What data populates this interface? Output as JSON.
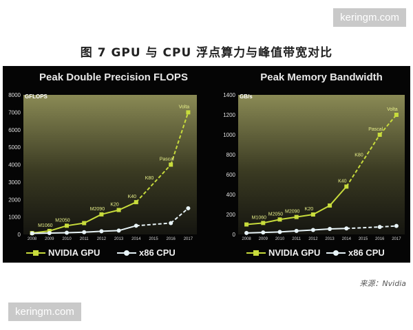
{
  "watermarks": {
    "top": "keringm.com",
    "bottom": "keringm.com"
  },
  "figure_title": "图 7 GPU 与 CPU 浮点算力与峰值带宽对比",
  "source": "来源：Nvidia",
  "colors": {
    "gpu": "#c8dc3c",
    "cpu": "#e8f4f8",
    "background": "#050505",
    "plot_gradient_top": "#8a8a55"
  },
  "chart_data": [
    {
      "type": "line",
      "title": "Peak Double Precision FLOPS",
      "ylabel": "GFLOPS",
      "xlabel": "",
      "x": [
        "2008",
        "2009",
        "2010",
        "2011",
        "2012",
        "2013",
        "2014",
        "2015",
        "2016",
        "2017"
      ],
      "ylim": [
        0,
        8000
      ],
      "yticks": [
        0,
        1000,
        2000,
        3000,
        4000,
        5000,
        6000,
        7000,
        8000
      ],
      "series": [
        {
          "name": "NVIDIA GPU",
          "values": [
            80,
            200,
            500,
            650,
            1150,
            1400,
            1850,
            null,
            4000,
            7000
          ],
          "labels": [
            "",
            "M1060",
            "M2050",
            "",
            "M2090",
            "K20",
            "K40",
            "K80",
            "Pascal",
            "Volta"
          ]
        },
        {
          "name": "x86 CPU",
          "values": [
            60,
            80,
            100,
            130,
            180,
            220,
            500,
            null,
            650,
            1500
          ]
        }
      ],
      "legend": "bottom"
    },
    {
      "type": "line",
      "title": "Peak Memory Bandwidth",
      "ylabel": "GB/s",
      "xlabel": "",
      "x": [
        "2008",
        "2009",
        "2010",
        "2011",
        "2012",
        "2013",
        "2014",
        "2015",
        "2016",
        "2017"
      ],
      "ylim": [
        0,
        1400
      ],
      "yticks": [
        0,
        200,
        400,
        600,
        800,
        1000,
        1200,
        1400
      ],
      "series": [
        {
          "name": "NVIDIA GPU",
          "values": [
            100,
            115,
            150,
            175,
            200,
            290,
            480,
            null,
            1000,
            1200
          ],
          "labels": [
            "",
            "M1060",
            "M2050",
            "M2090",
            "K20",
            "",
            "K40",
            "K80",
            "Pascal",
            "Volta"
          ]
        },
        {
          "name": "x86 CPU",
          "values": [
            15,
            20,
            25,
            35,
            45,
            55,
            60,
            null,
            75,
            85
          ]
        }
      ],
      "legend": "bottom"
    }
  ]
}
